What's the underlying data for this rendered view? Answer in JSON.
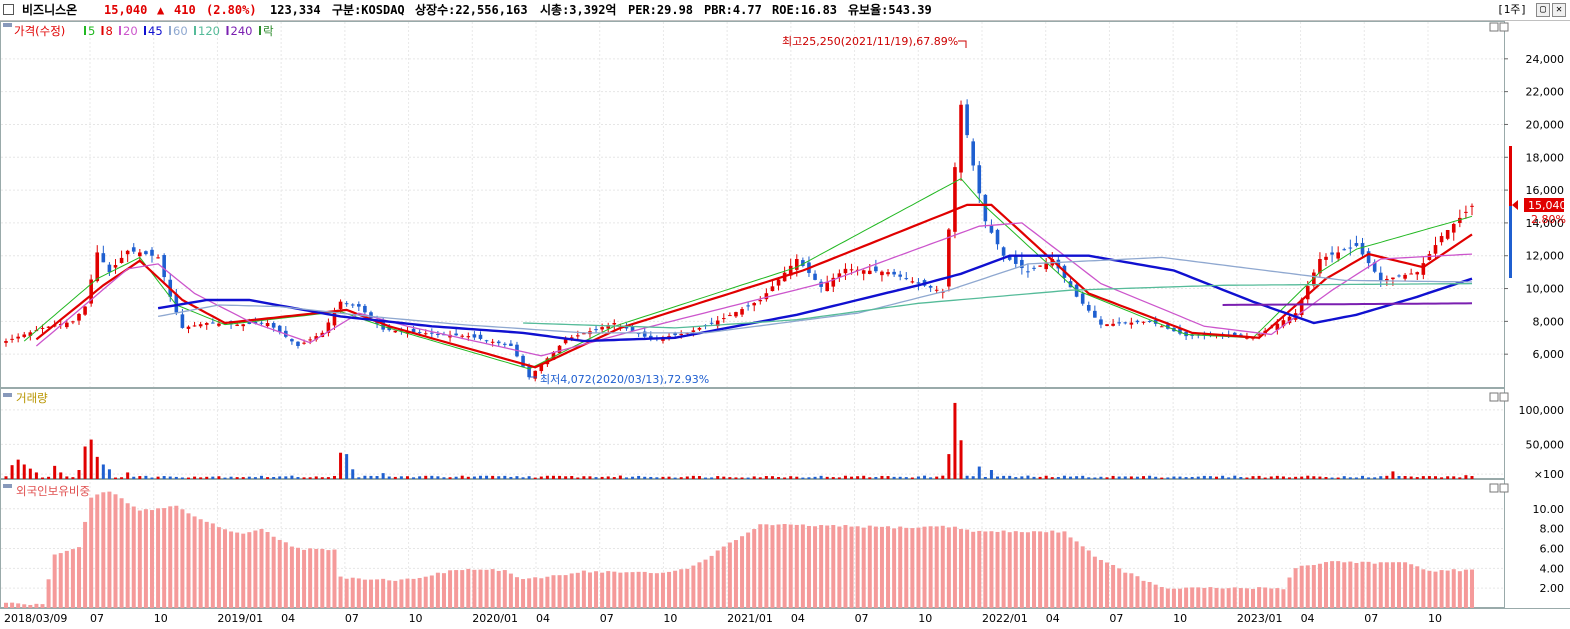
{
  "header": {
    "name": "비즈니스온",
    "price": "15,040",
    "change_arrow": "▲",
    "change": "410",
    "change_pct": "(2.80%)",
    "volume": "123,334",
    "market": "구분:KOSDAQ",
    "shares": "상장수:22,556,163",
    "mktcap": "시총:3,392억",
    "per": "PER:29.98",
    "pbr": "PBR:4.77",
    "roe": "ROE:16.83",
    "float": "유보율:543.39",
    "period_btn": "[1주]",
    "colors": {
      "up": "#e00000",
      "down": "#1f5fd0"
    }
  },
  "legend": {
    "price_label": "가격(수정)",
    "ma": [
      {
        "label": "5",
        "color": "#22b822"
      },
      {
        "label": "8",
        "color": "#e00000"
      },
      {
        "label": "20",
        "color": "#cc55cc"
      },
      {
        "label": "45",
        "color": "#1010d0"
      },
      {
        "label": "60",
        "color": "#8fa8d0"
      },
      {
        "label": "120",
        "color": "#55bb99"
      },
      {
        "label": "240",
        "color": "#7a1fb0"
      }
    ],
    "extra": "락",
    "volume_label": "거래량",
    "foreign_label": "외국인보유비중"
  },
  "annotations": {
    "high": "최고25,250(2021/11/19),67.89%",
    "low": "최저4,072(2020/03/13),72.93%",
    "last_price_tag": "15,040",
    "last_pct_tag": "2.80%"
  },
  "chart_data": [
    {
      "type": "candlestick",
      "title": "가격(수정)",
      "ylim": [
        4000,
        26000
      ],
      "y_ticks": [
        "6,000",
        "8,000",
        "10,000",
        "12,000",
        "14,000",
        "16,000",
        "18,000",
        "20,000",
        "22,000",
        "24,000"
      ],
      "x_ticks": [
        "2018/03/09",
        "07",
        "10",
        "2019/01",
        "04",
        "07",
        "10",
        "2020/01",
        "04",
        "07",
        "10",
        "2021/01",
        "04",
        "07",
        "10",
        "2022/01",
        "04",
        "07",
        "10",
        "2023/01",
        "04",
        "07",
        "10"
      ],
      "close_anchors": [
        [
          0,
          6800
        ],
        [
          6,
          7600
        ],
        [
          11,
          8000
        ],
        [
          13,
          8900
        ],
        [
          15,
          12200
        ],
        [
          17,
          11000
        ],
        [
          20,
          12300
        ],
        [
          22,
          12200
        ],
        [
          25,
          11900
        ],
        [
          27,
          9500
        ],
        [
          29,
          7600
        ],
        [
          33,
          7900
        ],
        [
          38,
          7800
        ],
        [
          43,
          7900
        ],
        [
          48,
          6500
        ],
        [
          52,
          7300
        ],
        [
          55,
          9200
        ],
        [
          58,
          8900
        ],
        [
          62,
          7500
        ],
        [
          68,
          7300
        ],
        [
          76,
          7100
        ],
        [
          83,
          6500
        ],
        [
          86,
          4600
        ],
        [
          92,
          6900
        ],
        [
          100,
          7900
        ],
        [
          106,
          6900
        ],
        [
          112,
          7300
        ],
        [
          118,
          8200
        ],
        [
          124,
          9300
        ],
        [
          130,
          11800
        ],
        [
          134,
          10100
        ],
        [
          138,
          11200
        ],
        [
          145,
          11000
        ],
        [
          150,
          10300
        ],
        [
          154,
          9800
        ],
        [
          157,
          21200
        ],
        [
          159,
          17500
        ],
        [
          161,
          14100
        ],
        [
          164,
          12000
        ],
        [
          168,
          11000
        ],
        [
          172,
          11800
        ],
        [
          176,
          9500
        ],
        [
          180,
          7800
        ],
        [
          188,
          8000
        ],
        [
          194,
          7100
        ],
        [
          200,
          7200
        ],
        [
          205,
          7000
        ],
        [
          212,
          8500
        ],
        [
          216,
          11800
        ],
        [
          222,
          12600
        ],
        [
          226,
          10500
        ],
        [
          232,
          11000
        ],
        [
          236,
          13200
        ],
        [
          241,
          15040
        ]
      ],
      "ma_anchors": {
        "5": [
          [
            3,
            6800
          ],
          [
            15,
            10600
          ],
          [
            22,
            11900
          ],
          [
            28,
            9000
          ],
          [
            36,
            7800
          ],
          [
            55,
            8600
          ],
          [
            62,
            7700
          ],
          [
            86,
            5100
          ],
          [
            100,
            7700
          ],
          [
            130,
            11300
          ],
          [
            157,
            16700
          ],
          [
            161,
            15000
          ],
          [
            176,
            9900
          ],
          [
            194,
            7200
          ],
          [
            205,
            7000
          ],
          [
            216,
            11000
          ],
          [
            222,
            12400
          ],
          [
            241,
            14400
          ]
        ],
        "8": [
          [
            5,
            6900
          ],
          [
            16,
            10200
          ],
          [
            22,
            11700
          ],
          [
            29,
            9300
          ],
          [
            36,
            7900
          ],
          [
            56,
            8700
          ],
          [
            63,
            7700
          ],
          [
            87,
            5200
          ],
          [
            101,
            7600
          ],
          [
            131,
            11100
          ],
          [
            158,
            15100
          ],
          [
            162,
            15100
          ],
          [
            178,
            9700
          ],
          [
            195,
            7300
          ],
          [
            206,
            7000
          ],
          [
            217,
            10600
          ],
          [
            224,
            12100
          ],
          [
            233,
            11300
          ],
          [
            241,
            13300
          ]
        ],
        "20": [
          [
            5,
            6500
          ],
          [
            20,
            11200
          ],
          [
            25,
            11500
          ],
          [
            31,
            9700
          ],
          [
            40,
            8000
          ],
          [
            50,
            6700
          ],
          [
            58,
            8500
          ],
          [
            66,
            7700
          ],
          [
            88,
            5900
          ],
          [
            104,
            7500
          ],
          [
            135,
            10400
          ],
          [
            160,
            13800
          ],
          [
            167,
            14000
          ],
          [
            180,
            10300
          ],
          [
            197,
            7700
          ],
          [
            208,
            7200
          ],
          [
            218,
            9900
          ],
          [
            226,
            11800
          ],
          [
            241,
            12100
          ]
        ],
        "45": [
          [
            25,
            8800
          ],
          [
            33,
            9300
          ],
          [
            40,
            9300
          ],
          [
            55,
            8300
          ],
          [
            70,
            7700
          ],
          [
            85,
            7300
          ],
          [
            95,
            6800
          ],
          [
            110,
            7000
          ],
          [
            130,
            8400
          ],
          [
            150,
            10200
          ],
          [
            157,
            10900
          ],
          [
            165,
            12000
          ],
          [
            178,
            12000
          ],
          [
            192,
            11100
          ],
          [
            205,
            9200
          ],
          [
            215,
            7900
          ],
          [
            222,
            8400
          ],
          [
            232,
            9500
          ],
          [
            241,
            10600
          ]
        ],
        "60": [
          [
            25,
            8300
          ],
          [
            35,
            9000
          ],
          [
            45,
            8900
          ],
          [
            60,
            8300
          ],
          [
            75,
            7800
          ],
          [
            95,
            7300
          ],
          [
            115,
            7300
          ],
          [
            140,
            8500
          ],
          [
            155,
            9900
          ],
          [
            168,
            11500
          ],
          [
            190,
            11900
          ],
          [
            205,
            11200
          ],
          [
            220,
            10500
          ],
          [
            241,
            10400
          ]
        ],
        "120": [
          [
            85,
            7900
          ],
          [
            110,
            7600
          ],
          [
            130,
            8100
          ],
          [
            150,
            9100
          ],
          [
            175,
            9900
          ],
          [
            200,
            10200
          ],
          [
            241,
            10300
          ]
        ],
        "240": [
          [
            200,
            9000
          ],
          [
            241,
            9100
          ]
        ]
      }
    },
    {
      "type": "bar",
      "title": "거래량",
      "y_ticks": [
        "100,000",
        "50,000",
        "×100"
      ],
      "ylim": [
        0,
        1200
      ],
      "spikes": [
        [
          1,
          200
        ],
        [
          2,
          280
        ],
        [
          3,
          210
        ],
        [
          4,
          150
        ],
        [
          5,
          95
        ],
        [
          8,
          190
        ],
        [
          9,
          95
        ],
        [
          12,
          130
        ],
        [
          13,
          470
        ],
        [
          14,
          570
        ],
        [
          15,
          320
        ],
        [
          16,
          210
        ],
        [
          17,
          140
        ],
        [
          20,
          95
        ],
        [
          55,
          380
        ],
        [
          56,
          360
        ],
        [
          57,
          140
        ],
        [
          62,
          85
        ],
        [
          155,
          360
        ],
        [
          156,
          1100
        ],
        [
          157,
          560
        ],
        [
          160,
          180
        ],
        [
          162,
          130
        ],
        [
          228,
          110
        ],
        [
          240,
          55
        ]
      ]
    },
    {
      "type": "bar",
      "title": "외국인보유비중",
      "y_ticks": [
        "10.00",
        "8.00",
        "6.00",
        "4.00",
        "2.00"
      ],
      "ylim": [
        0,
        12.5
      ],
      "anchors": [
        [
          0,
          0.5
        ],
        [
          6,
          0.3
        ],
        [
          8,
          5.5
        ],
        [
          12,
          6.1
        ],
        [
          14,
          11.1
        ],
        [
          17,
          11.8
        ],
        [
          22,
          9.8
        ],
        [
          28,
          10.3
        ],
        [
          31,
          9.2
        ],
        [
          38,
          7.5
        ],
        [
          42,
          7.9
        ],
        [
          48,
          6.0
        ],
        [
          54,
          5.8
        ],
        [
          55,
          3.1
        ],
        [
          65,
          2.8
        ],
        [
          75,
          3.9
        ],
        [
          82,
          3.8
        ],
        [
          85,
          2.8
        ],
        [
          95,
          3.7
        ],
        [
          108,
          3.5
        ],
        [
          113,
          4.2
        ],
        [
          124,
          8.4
        ],
        [
          150,
          8.1
        ],
        [
          154,
          8.3
        ],
        [
          160,
          7.7
        ],
        [
          174,
          7.7
        ],
        [
          180,
          4.8
        ],
        [
          190,
          2.0
        ],
        [
          210,
          2.0
        ],
        [
          212,
          4.1
        ],
        [
          218,
          4.7
        ],
        [
          230,
          4.5
        ],
        [
          235,
          3.7
        ],
        [
          241,
          3.9
        ]
      ]
    }
  ]
}
